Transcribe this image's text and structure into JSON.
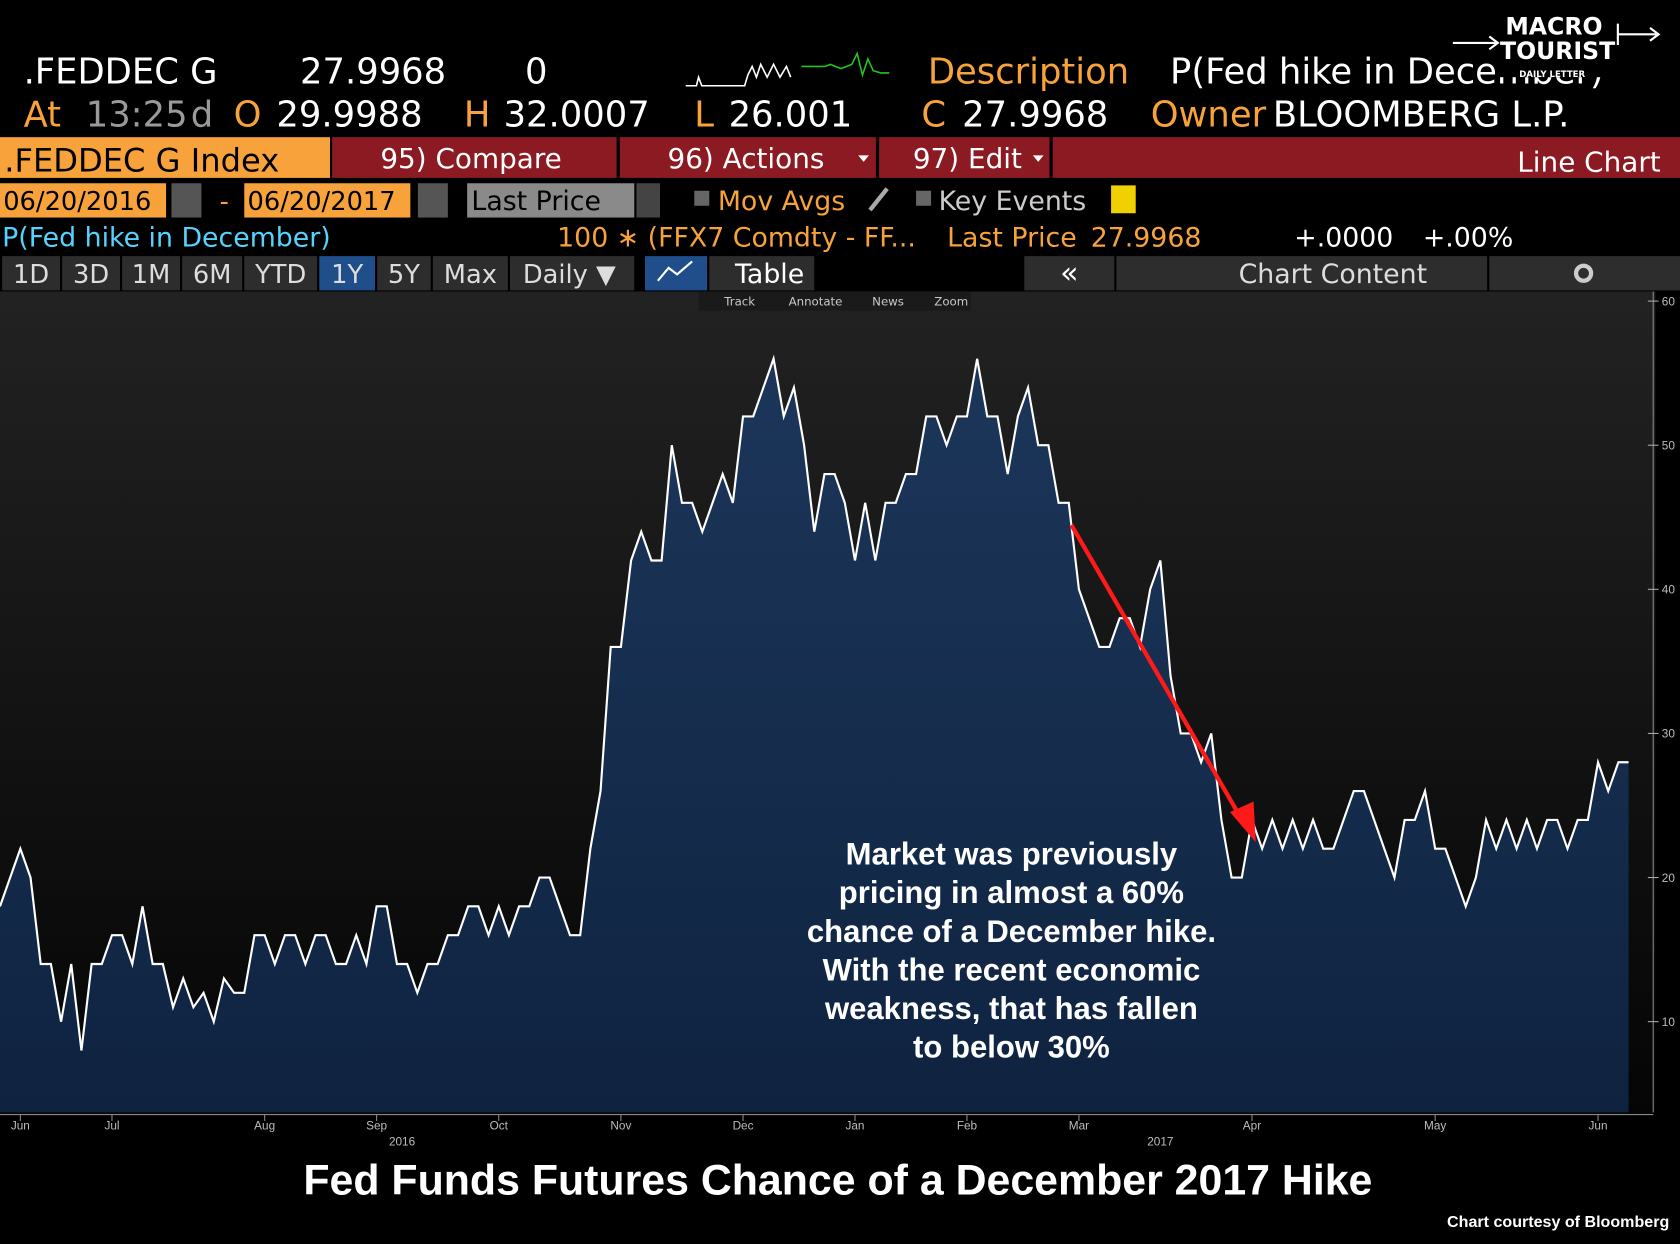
{
  "header": {
    "ticker": ".FEDDEC G",
    "price": "27.9968",
    "change": "0",
    "description_label": "Description",
    "description": "P(Fed hike in December)",
    "at_label": "At",
    "time": "13:25",
    "time_suffix": "d",
    "open_label": "O",
    "open": "29.9988",
    "high_label": "H",
    "high": "32.0007",
    "low_label": "L",
    "low": "26.001",
    "close_label": "C",
    "close": "27.9968",
    "owner_label": "Owner",
    "owner": "BLOOMBERG L.P."
  },
  "logo": {
    "line1": "MACRO",
    "line2": "TOURIST",
    "line3": "DAILY LETTER"
  },
  "toolbar": {
    "security": ".FEDDEC G Index",
    "buttons": [
      "95) Compare",
      "96) Actions",
      "97) Edit"
    ],
    "view": "Line Chart"
  },
  "settings": {
    "start_date": "06/20/2016",
    "separator": "-",
    "end_date": "06/20/2017",
    "field": "Last Price",
    "mov_avgs": "Mov Avgs",
    "key_events": "Key Events"
  },
  "legend": {
    "name": "P(Fed hike in December)",
    "formula": "100 ∗ (FFX7 Comdty - FF...",
    "last_price_label": "Last Price",
    "last_price": "27.9968",
    "change": "+.0000",
    "pct_change": "+.00%"
  },
  "periods": [
    "1D",
    "3D",
    "1M",
    "6M",
    "YTD",
    "1Y",
    "5Y",
    "Max",
    "Daily ▼"
  ],
  "view_tabs": {
    "table": "Table",
    "back": "«",
    "chart_content": "Chart Content"
  },
  "tools": [
    "Track",
    "Annotate",
    "News",
    "Zoom"
  ],
  "chart_data": {
    "type": "area",
    "title": "Fed Funds Futures Chance of a December 2017 Hike",
    "credit": "Chart courtesy of Bloomberg",
    "annotation": [
      "Market was previously",
      "pricing in almost a 60%",
      "chance of a December hike.",
      "With the recent economic",
      "weakness, that has fallen",
      "to below 30%"
    ],
    "values": [
      18,
      20,
      22,
      20,
      14,
      14,
      10,
      14,
      8,
      14,
      14,
      16,
      16,
      14,
      18,
      14,
      14,
      11,
      13,
      11,
      12,
      10,
      13,
      12,
      12,
      16,
      16,
      14,
      16,
      16,
      14,
      16,
      16,
      14,
      14,
      16,
      14,
      18,
      18,
      14,
      14,
      12,
      14,
      14,
      16,
      16,
      18,
      18,
      16,
      18,
      16,
      18,
      18,
      20,
      20,
      18,
      16,
      16,
      22,
      26,
      36,
      36,
      42,
      44,
      42,
      42,
      50,
      46,
      46,
      44,
      46,
      48,
      46,
      52,
      52,
      54,
      56,
      52,
      54,
      50,
      44,
      48,
      48,
      46,
      42,
      46,
      42,
      46,
      46,
      48,
      48,
      52,
      52,
      50,
      52,
      52,
      56,
      52,
      52,
      48,
      52,
      54,
      50,
      50,
      46,
      46,
      40,
      38,
      36,
      36,
      38,
      38,
      36,
      40,
      42,
      34,
      30,
      30,
      28,
      30,
      24,
      20,
      20,
      24,
      22,
      24,
      22,
      24,
      22,
      24,
      22,
      22,
      24,
      26,
      26,
      24,
      22,
      20,
      24,
      24,
      26,
      22,
      22,
      20,
      18,
      20,
      24,
      22,
      24,
      22,
      24,
      22,
      24,
      24,
      22,
      24,
      24,
      28,
      26,
      28,
      28
    ],
    "line_color": "#ffffff",
    "fill_color": "#12284a",
    "xlim": [
      0,
      160
    ],
    "xticks": [
      {
        "value": 2,
        "label": "Jun"
      },
      {
        "value": 11,
        "label": "Jul"
      },
      {
        "value": 26,
        "label": "Aug"
      },
      {
        "value": 37,
        "label": "Sep"
      },
      {
        "value": 49,
        "label": "Oct"
      },
      {
        "value": 61,
        "label": "Nov"
      },
      {
        "value": 73,
        "label": "Dec"
      },
      {
        "value": 84,
        "label": "Jan"
      },
      {
        "value": 95,
        "label": "Feb"
      },
      {
        "value": 106,
        "label": "Mar"
      },
      {
        "value": 123,
        "label": "Apr"
      },
      {
        "value": 141,
        "label": "May"
      },
      {
        "value": 157,
        "label": "Jun"
      }
    ],
    "year_labels": [
      {
        "value": 39.5,
        "label": "2016"
      },
      {
        "value": 114,
        "label": "2017"
      }
    ],
    "ylim": [
      3.7,
      60
    ],
    "yticks": [
      10,
      20,
      30,
      40,
      50,
      60
    ]
  }
}
